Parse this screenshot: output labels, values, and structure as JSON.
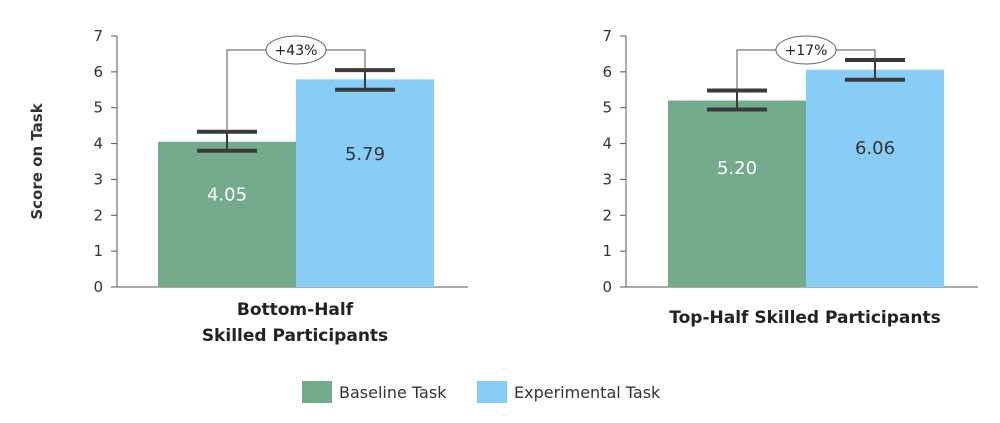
{
  "chart_data": {
    "type": "bar",
    "ylabel": "Score on Task",
    "ylim": [
      0,
      7
    ],
    "yticks": [
      0,
      1,
      2,
      3,
      4,
      5,
      6,
      7
    ],
    "grid": false,
    "legend_position": "bottom-center",
    "series": [
      {
        "name": "Baseline Task",
        "color": "#73ab8c",
        "label_color": "#ffffff"
      },
      {
        "name": "Experimental Task",
        "color": "#88cdf6",
        "label_color": "#333333"
      }
    ],
    "panels": [
      {
        "category_label": [
          "Bottom-Half",
          "Skilled Participants"
        ],
        "values": [
          4.05,
          5.79
        ],
        "value_labels": [
          "4.05",
          "5.79"
        ],
        "error_low": [
          3.8,
          5.5
        ],
        "error_high": [
          4.33,
          6.05
        ],
        "annotation": "+43%"
      },
      {
        "category_label": [
          "Top-Half Skilled Participants"
        ],
        "values": [
          5.2,
          6.06
        ],
        "value_labels": [
          "5.20",
          "6.06"
        ],
        "error_low": [
          4.95,
          5.78
        ],
        "error_high": [
          5.48,
          6.33
        ],
        "annotation": "+17%"
      }
    ]
  }
}
